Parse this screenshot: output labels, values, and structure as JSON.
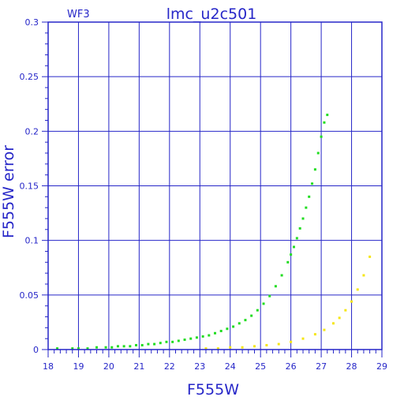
{
  "chart_data": {
    "type": "scatter",
    "title": "lmc_u2c501",
    "chip_label": "WF3",
    "xlabel": "F555W",
    "ylabel": "F555W error",
    "xlim": [
      18,
      29
    ],
    "ylim": [
      0,
      0.3
    ],
    "x_ticks": [
      18,
      19,
      20,
      21,
      22,
      23,
      24,
      25,
      26,
      27,
      28,
      29
    ],
    "x_tick_labels": [
      "18",
      "19",
      "20",
      "21",
      "22",
      "23",
      "24",
      "25",
      "26",
      "27",
      "28",
      "29"
    ],
    "y_ticks": [
      0,
      0.05,
      0.1,
      0.15,
      0.2,
      0.25,
      0.3
    ],
    "y_tick_labels": [
      "0",
      "0.05",
      "0.1",
      "0.15",
      "0.2",
      "0.25",
      "0.3"
    ],
    "grid": true,
    "colors": {
      "frame": "#2626c8",
      "green_series": "#22dd22",
      "yellow_series": "#f5e614"
    },
    "series": [
      {
        "color": "#22dd22",
        "x": [
          18.3,
          18.8,
          19.0,
          19.3,
          19.6,
          19.9,
          20.1,
          20.3,
          20.5,
          20.7,
          20.9,
          21.1,
          21.3,
          21.5,
          21.7,
          21.9,
          22.1,
          22.3,
          22.5,
          22.7,
          22.9,
          23.1,
          23.3,
          23.5,
          23.7,
          23.9,
          24.1,
          24.3,
          24.5,
          24.7,
          24.9,
          25.1,
          25.3,
          25.5,
          25.7,
          25.9,
          26.0,
          26.1,
          26.2,
          26.3,
          26.4,
          26.5,
          26.6,
          26.7,
          26.8,
          26.9,
          27.0,
          27.1,
          27.2
        ],
        "y": [
          0.001,
          0.001,
          0.001,
          0.001,
          0.002,
          0.002,
          0.002,
          0.003,
          0.003,
          0.003,
          0.004,
          0.004,
          0.005,
          0.005,
          0.006,
          0.007,
          0.007,
          0.008,
          0.009,
          0.01,
          0.011,
          0.012,
          0.013,
          0.015,
          0.017,
          0.019,
          0.021,
          0.024,
          0.027,
          0.031,
          0.036,
          0.042,
          0.049,
          0.058,
          0.068,
          0.08,
          0.087,
          0.094,
          0.102,
          0.111,
          0.12,
          0.13,
          0.14,
          0.152,
          0.165,
          0.18,
          0.195,
          0.208,
          0.215
        ]
      },
      {
        "color": "#f5e614",
        "x": [
          23.2,
          23.6,
          24.0,
          24.4,
          24.8,
          25.2,
          25.6,
          26.0,
          26.4,
          26.8,
          27.1,
          27.4,
          27.6,
          27.8,
          28.0,
          28.2,
          28.4,
          28.6
        ],
        "y": [
          0.001,
          0.001,
          0.002,
          0.002,
          0.003,
          0.004,
          0.005,
          0.007,
          0.01,
          0.014,
          0.018,
          0.024,
          0.029,
          0.036,
          0.044,
          0.055,
          0.068,
          0.085
        ]
      }
    ]
  }
}
